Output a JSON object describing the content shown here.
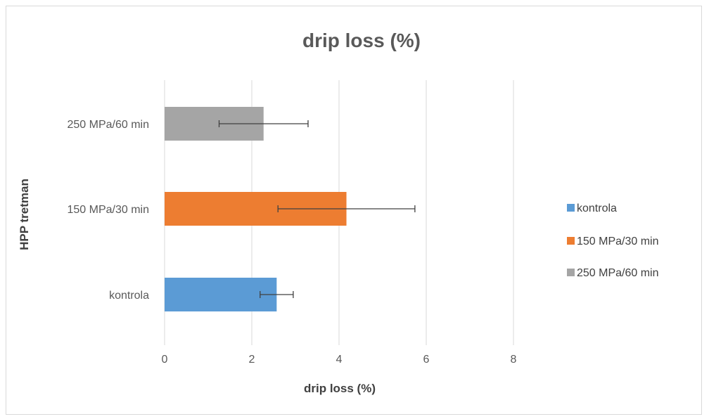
{
  "chart_data": {
    "type": "bar",
    "orientation": "horizontal",
    "title": "drip loss (%)",
    "xlabel": "drip loss (%)",
    "ylabel": "HPP tretman",
    "categories": [
      "kontrola",
      "150 MPa/30 min",
      "250 MPa/60 min"
    ],
    "values": [
      2.57,
      4.17,
      2.27
    ],
    "error": [
      0.38,
      1.57,
      1.02
    ],
    "colors": [
      "#5b9bd5",
      "#ed7d31",
      "#a5a5a5"
    ],
    "xlim": [
      0,
      8
    ],
    "xticks": [
      "0",
      "2",
      "4",
      "6",
      "8"
    ],
    "grid": true,
    "legend": {
      "placement": "right",
      "entries": [
        "kontrola",
        "150 MPa/30 min",
        "250 MPa/60 min"
      ]
    }
  }
}
